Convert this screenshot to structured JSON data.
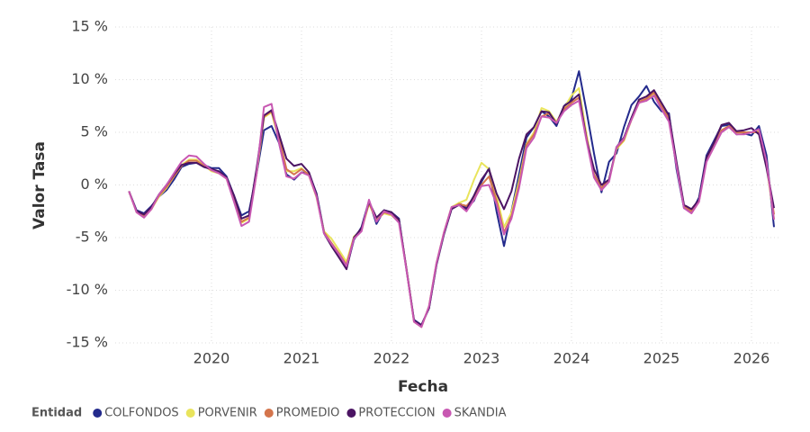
{
  "chart_data": {
    "type": "line",
    "x_label": "Fecha",
    "y_label": "Valor Tasa",
    "legend_title": "Entidad",
    "grid": true,
    "legend_position": "bottom-left",
    "xlim": [
      2018.93,
      2026.33
    ],
    "xticks": [
      2020,
      2021,
      2022,
      2023,
      2024,
      2025,
      2026
    ],
    "ylim": [
      -15,
      15
    ],
    "yticks": [
      {
        "value": -15,
        "label": "-15 %"
      },
      {
        "value": -10,
        "label": "-10 %"
      },
      {
        "value": -5,
        "label": "-5 %"
      },
      {
        "value": 0,
        "label": "0 %"
      },
      {
        "value": 5,
        "label": "5 %"
      },
      {
        "value": 10,
        "label": "10 %"
      },
      {
        "value": 15,
        "label": "15 %"
      }
    ],
    "x": [
      2019.083,
      2019.167,
      2019.25,
      2019.333,
      2019.417,
      2019.5,
      2019.583,
      2019.667,
      2019.75,
      2019.833,
      2019.917,
      2020.0,
      2020.083,
      2020.167,
      2020.25,
      2020.333,
      2020.417,
      2020.5,
      2020.583,
      2020.667,
      2020.75,
      2020.833,
      2020.917,
      2021.0,
      2021.083,
      2021.167,
      2021.25,
      2021.333,
      2021.417,
      2021.5,
      2021.583,
      2021.667,
      2021.75,
      2021.833,
      2021.917,
      2022.0,
      2022.083,
      2022.167,
      2022.25,
      2022.333,
      2022.417,
      2022.5,
      2022.583,
      2022.667,
      2022.75,
      2022.833,
      2022.917,
      2023.0,
      2023.083,
      2023.167,
      2023.25,
      2023.333,
      2023.417,
      2023.5,
      2023.583,
      2023.667,
      2023.75,
      2023.833,
      2023.917,
      2024.0,
      2024.083,
      2024.167,
      2024.25,
      2024.333,
      2024.417,
      2024.5,
      2024.583,
      2024.667,
      2024.75,
      2024.833,
      2024.917,
      2025.0,
      2025.083,
      2025.167,
      2025.25,
      2025.333,
      2025.417,
      2025.5,
      2025.583,
      2025.667,
      2025.75,
      2025.833,
      2025.917,
      2026.0,
      2026.083,
      2026.167,
      2026.25
    ],
    "series": [
      {
        "name": "COLFONDOS",
        "color": "#232a8c",
        "values": [
          -0.6,
          -2.4,
          -2.7,
          -2.0,
          -1.1,
          -0.5,
          0.5,
          1.7,
          2.0,
          2.1,
          1.9,
          1.6,
          1.6,
          0.8,
          -1.0,
          -2.9,
          -2.5,
          1.0,
          5.2,
          5.6,
          4.0,
          1.0,
          0.5,
          1.2,
          1.1,
          -0.8,
          -4.4,
          -5.7,
          -6.8,
          -7.9,
          -5.2,
          -4.0,
          -1.5,
          -3.7,
          -2.4,
          -2.6,
          -3.2,
          -8.1,
          -12.8,
          -13.3,
          -11.7,
          -7.6,
          -4.7,
          -2.3,
          -1.7,
          -2.2,
          -1.5,
          0.3,
          1.6,
          -2.5,
          -5.8,
          -2.5,
          1.0,
          4.5,
          5.5,
          7.0,
          6.5,
          5.6,
          7.5,
          8.2,
          10.8,
          7.0,
          3.0,
          -0.7,
          2.2,
          3.0,
          5.5,
          7.6,
          8.4,
          9.4,
          7.9,
          7.0,
          6.8,
          1.5,
          -2.2,
          -2.6,
          -1.2,
          2.8,
          4.2,
          5.6,
          5.7,
          4.8,
          4.9,
          4.7,
          5.6,
          2.8,
          -4.0
        ]
      },
      {
        "name": "PORVENIR",
        "color": "#e9e45c",
        "values": [
          -0.6,
          -2.6,
          -3.0,
          -2.3,
          -1.1,
          -0.3,
          0.8,
          1.9,
          2.4,
          2.4,
          1.9,
          1.3,
          1.1,
          0.6,
          -1.4,
          -3.6,
          -3.2,
          1.0,
          6.4,
          6.9,
          4.2,
          1.3,
          1.3,
          1.6,
          0.9,
          -1.2,
          -4.4,
          -5.1,
          -6.2,
          -7.3,
          -4.9,
          -4.3,
          -1.8,
          -3.3,
          -2.7,
          -2.9,
          -3.5,
          -8.0,
          -13.0,
          -13.5,
          -11.5,
          -7.4,
          -4.5,
          -2.1,
          -1.7,
          -1.4,
          0.5,
          2.1,
          1.5,
          -1.0,
          -4.0,
          -2.6,
          0.4,
          3.9,
          5.0,
          7.3,
          7.0,
          6.0,
          7.3,
          8.5,
          9.2,
          4.8,
          1.0,
          -0.4,
          0.4,
          3.4,
          4.2,
          6.2,
          7.8,
          8.1,
          8.7,
          7.4,
          6.2,
          2.0,
          -2.0,
          -2.5,
          -1.5,
          2.4,
          3.7,
          5.1,
          5.5,
          4.9,
          5.0,
          5.0,
          5.1,
          1.8,
          -3.2
        ]
      },
      {
        "name": "PROMEDIO",
        "color": "#d4754c",
        "values": [
          -0.6,
          -2.5,
          -2.9,
          -2.2,
          -1.0,
          -0.2,
          0.8,
          1.8,
          2.3,
          2.3,
          1.8,
          1.4,
          1.2,
          0.7,
          -1.3,
          -3.5,
          -3.1,
          1.2,
          6.5,
          7.0,
          4.5,
          1.5,
          1.0,
          1.5,
          1.0,
          -1.0,
          -4.5,
          -5.5,
          -6.5,
          -7.6,
          -5.0,
          -4.2,
          -1.7,
          -3.4,
          -2.6,
          -2.8,
          -3.4,
          -8.0,
          -12.9,
          -13.4,
          -11.6,
          -7.5,
          -4.6,
          -2.2,
          -1.8,
          -2.0,
          -1.2,
          0.0,
          0.8,
          -1.5,
          -4.5,
          -3.0,
          0.0,
          3.8,
          4.8,
          6.5,
          6.8,
          5.9,
          7.2,
          7.8,
          8.3,
          4.5,
          1.0,
          -0.3,
          0.5,
          3.5,
          4.3,
          6.3,
          7.9,
          8.2,
          8.8,
          7.5,
          6.3,
          2.0,
          -2.0,
          -2.5,
          -1.5,
          2.5,
          3.8,
          5.2,
          5.6,
          5.0,
          5.0,
          5.0,
          5.0,
          2.0,
          -2.8
        ]
      },
      {
        "name": "PROTECCION",
        "color": "#4b1463",
        "values": [
          -0.6,
          -2.5,
          -2.8,
          -2.1,
          -0.9,
          0.0,
          1.0,
          1.9,
          2.1,
          2.1,
          1.7,
          1.5,
          1.3,
          0.7,
          -1.0,
          -3.2,
          -2.9,
          1.5,
          6.6,
          7.1,
          4.8,
          2.5,
          1.8,
          2.0,
          1.2,
          -0.9,
          -4.6,
          -5.8,
          -6.9,
          -8.0,
          -5.0,
          -4.1,
          -1.6,
          -3.1,
          -2.4,
          -2.6,
          -3.3,
          -8.0,
          -12.9,
          -13.3,
          -11.7,
          -7.5,
          -4.6,
          -2.3,
          -1.9,
          -2.3,
          -1.0,
          0.5,
          1.5,
          -0.8,
          -2.3,
          -0.6,
          2.5,
          4.8,
          5.5,
          7.0,
          6.9,
          5.8,
          7.5,
          8.0,
          8.6,
          4.3,
          1.5,
          0.0,
          0.5,
          3.6,
          4.5,
          6.4,
          8.1,
          8.4,
          9.0,
          7.8,
          6.6,
          2.2,
          -1.9,
          -2.3,
          -1.4,
          2.6,
          4.0,
          5.7,
          5.9,
          5.1,
          5.2,
          5.4,
          4.8,
          1.6,
          -2.2
        ]
      },
      {
        "name": "SKANDIA",
        "color": "#c858b2",
        "values": [
          -0.6,
          -2.6,
          -3.1,
          -2.3,
          -0.9,
          0.0,
          1.1,
          2.2,
          2.8,
          2.7,
          2.0,
          1.4,
          1.1,
          0.6,
          -1.6,
          -3.9,
          -3.5,
          1.0,
          7.4,
          7.7,
          4.0,
          0.8,
          0.6,
          1.2,
          0.9,
          -1.1,
          -4.6,
          -5.6,
          -6.6,
          -7.7,
          -5.1,
          -4.4,
          -1.4,
          -3.5,
          -2.5,
          -2.8,
          -3.6,
          -8.1,
          -13.0,
          -13.5,
          -11.5,
          -7.4,
          -4.5,
          -2.1,
          -1.9,
          -2.5,
          -1.4,
          -0.1,
          0.0,
          -1.8,
          -4.7,
          -3.2,
          -0.3,
          3.5,
          4.5,
          6.5,
          6.4,
          5.9,
          7.0,
          7.6,
          8.0,
          4.2,
          0.7,
          -0.5,
          0.3,
          3.6,
          4.4,
          6.2,
          7.8,
          8.0,
          8.5,
          7.2,
          6.0,
          1.8,
          -2.2,
          -2.7,
          -1.6,
          2.2,
          3.6,
          5.0,
          5.5,
          4.8,
          4.8,
          5.0,
          5.3,
          2.2,
          -3.3
        ]
      }
    ]
  }
}
